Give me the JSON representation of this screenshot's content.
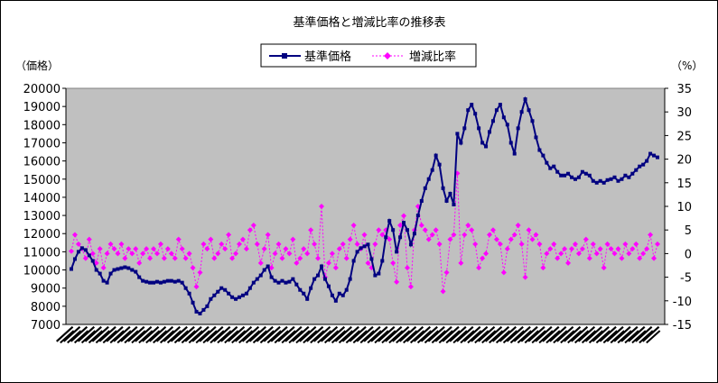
{
  "chart_data": {
    "type": "line",
    "title": "基準価格と増減比率の推移表",
    "ylabel": "（価格）",
    "y2label": "（%）",
    "ylim": [
      7000,
      20000
    ],
    "y2lim": [
      -15,
      35
    ],
    "yticks": [
      7000,
      8000,
      9000,
      10000,
      11000,
      12000,
      13000,
      14000,
      15000,
      16000,
      17000,
      18000,
      19000,
      20000
    ],
    "y2ticks": [
      -15,
      -10,
      -5,
      0,
      5,
      10,
      15,
      20,
      25,
      30,
      35
    ],
    "xlabels_note": "x-axis tick labels are illegible dates",
    "legend": {
      "position": "top-center"
    },
    "grid": false,
    "background_color": "#C0C0C0",
    "series": [
      {
        "name": "基準価格",
        "axis": "left",
        "color": "#000080",
        "marker": "square",
        "values": [
          10050,
          10600,
          11000,
          11200,
          11100,
          10800,
          10500,
          10000,
          9800,
          9400,
          9300,
          9800,
          10000,
          10050,
          10100,
          10150,
          10100,
          10000,
          9900,
          9600,
          9400,
          9350,
          9300,
          9300,
          9350,
          9300,
          9350,
          9400,
          9400,
          9350,
          9400,
          9300,
          9000,
          8700,
          8200,
          7700,
          7600,
          7800,
          8000,
          8400,
          8600,
          8800,
          9000,
          8900,
          8700,
          8500,
          8400,
          8500,
          8600,
          8700,
          9000,
          9300,
          9500,
          9700,
          10000,
          10200,
          9600,
          9400,
          9300,
          9400,
          9300,
          9350,
          9500,
          9200,
          8900,
          8700,
          8400,
          9000,
          9500,
          9700,
          10200,
          9500,
          9100,
          8600,
          8300,
          8700,
          8600,
          8900,
          9500,
          10500,
          11000,
          11200,
          11300,
          11400,
          10600,
          9700,
          9800,
          10500,
          11800,
          12700,
          12200,
          11000,
          11800,
          12600,
          12200,
          11400,
          12000,
          13000,
          13800,
          14500,
          15000,
          15500,
          16300,
          15800,
          14500,
          13800,
          14200,
          13600,
          17500,
          17000,
          17800,
          18800,
          19100,
          18600,
          17800,
          17000,
          16800,
          17600,
          18200,
          18800,
          19100,
          18400,
          18000,
          17000,
          16400,
          17800,
          18700,
          19400,
          18800,
          18200,
          17300,
          16600,
          16300,
          15900,
          15600,
          15700,
          15400,
          15200,
          15200,
          15300,
          15100,
          15000,
          15100,
          15400,
          15300,
          15200,
          14900,
          14800,
          14900,
          14800,
          14950,
          15000,
          15100,
          14900,
          15000,
          15200,
          15100,
          15300,
          15500,
          15700,
          15800,
          16000,
          16400,
          16300,
          16200
        ]
      },
      {
        "name": "増減比率",
        "axis": "right",
        "color": "#FF00FF",
        "marker": "diamond",
        "values": [
          0.5,
          4,
          2,
          1,
          -1,
          3,
          0,
          -2,
          1,
          -3,
          0,
          2,
          1,
          0,
          2,
          -1,
          1,
          0,
          1,
          -2,
          0,
          1,
          -1,
          1,
          0,
          2,
          -1,
          1,
          0,
          -1,
          3,
          1,
          -1,
          0,
          -3,
          -7,
          -4,
          2,
          1,
          3,
          -1,
          0,
          2,
          1,
          4,
          -1,
          0,
          2,
          3,
          1,
          5,
          6,
          2,
          -2,
          1,
          4,
          -3,
          0,
          2,
          -1,
          1,
          0,
          3,
          -2,
          -1,
          1,
          0,
          5,
          2,
          -1,
          10,
          -5,
          -2,
          0,
          -3,
          1,
          2,
          -1,
          3,
          6,
          2,
          1,
          4,
          -2,
          -3,
          2,
          5,
          4,
          5,
          3,
          -2,
          -6,
          6,
          8,
          -3,
          -7,
          5,
          10,
          6,
          5,
          3,
          4,
          5,
          2,
          -8,
          -4,
          3,
          4,
          17,
          -2,
          4,
          6,
          5,
          2,
          -3,
          -1,
          0,
          4,
          5,
          3,
          2,
          -4,
          1,
          3,
          4,
          6,
          2,
          -5,
          5,
          3,
          4,
          2,
          -3,
          0,
          1,
          2,
          -1,
          0,
          1,
          -2,
          1,
          2,
          0,
          1,
          3,
          -1,
          2,
          0,
          1,
          -3,
          2,
          1,
          0,
          1,
          -1,
          2,
          0,
          1,
          2,
          -1,
          0,
          1,
          4,
          -1,
          2
        ]
      }
    ]
  }
}
